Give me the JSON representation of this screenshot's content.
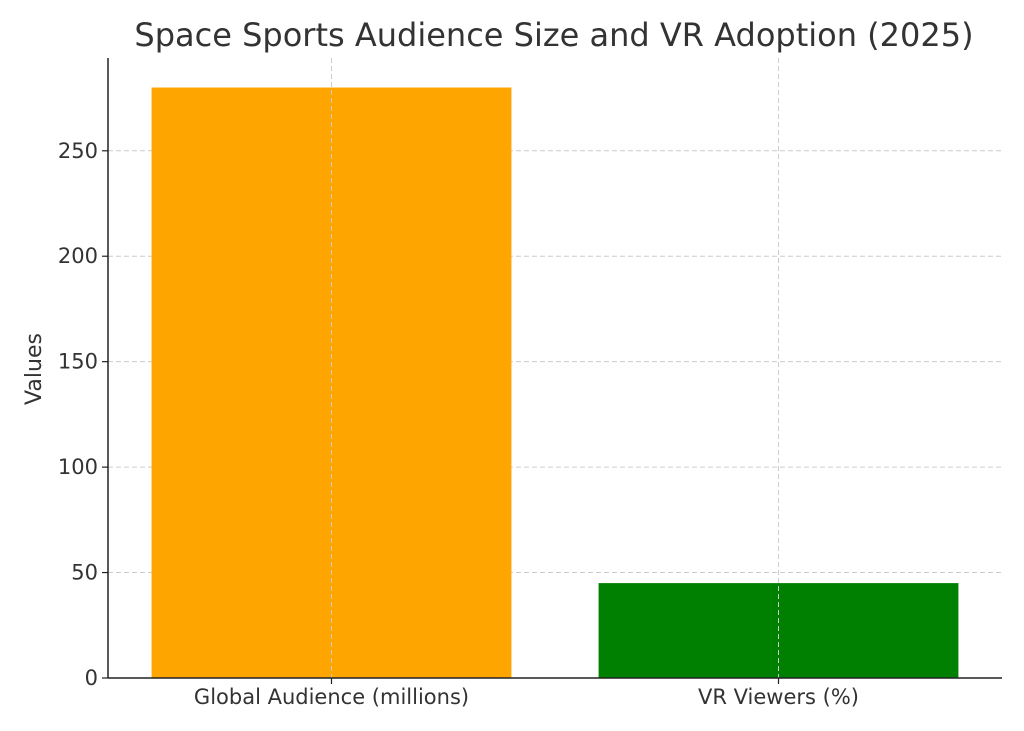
{
  "chart_data": {
    "type": "bar",
    "title": "Space Sports Audience Size and VR Adoption (2025)",
    "xlabel": "",
    "ylabel": "Values",
    "categories": [
      "Global Audience (millions)",
      "VR Viewers (%)"
    ],
    "values": [
      280,
      45
    ],
    "colors": [
      "#FFA500",
      "#008000"
    ],
    "ylim": [
      0,
      294
    ],
    "yticks": [
      0,
      50,
      100,
      150,
      200,
      250
    ],
    "grid": true,
    "legend": "none"
  }
}
